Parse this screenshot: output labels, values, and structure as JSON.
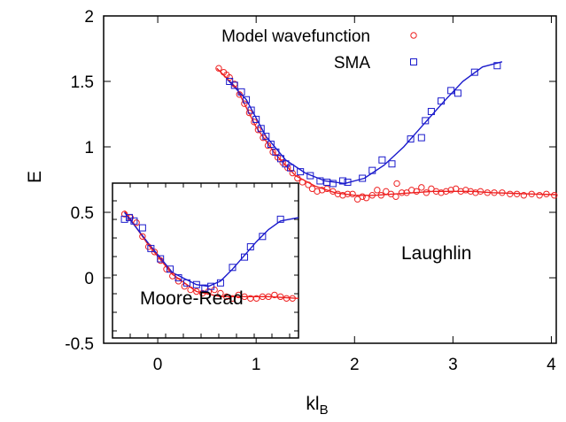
{
  "chart_data": [
    {
      "type": "scatter",
      "title": "",
      "xlabel": "kl",
      "xlabel_subscript": "B",
      "ylabel": "E",
      "xlim": [
        -0.55,
        4.05
      ],
      "ylim": [
        -0.5,
        2.0
      ],
      "x_ticks": [
        "0",
        "1",
        "2",
        "3",
        "4"
      ],
      "y_ticks": [
        "-0.5",
        "0",
        "0.5",
        "1",
        "1.5",
        "2"
      ],
      "x_tick_values": [
        0,
        1,
        2,
        3,
        4
      ],
      "y_tick_values": [
        -0.5,
        0,
        0.5,
        1,
        1.5,
        2
      ],
      "legend_position": "top-right",
      "annotation": "Laughlin",
      "colors": {
        "model": "#ee2222",
        "sma": "#1a1acc"
      },
      "series": [
        {
          "name": "Model wavefunction",
          "marker": "circle",
          "points": [
            [
              0.62,
              1.6
            ],
            [
              0.67,
              1.57
            ],
            [
              0.7,
              1.55
            ],
            [
              0.73,
              1.53
            ],
            [
              0.78,
              1.48
            ],
            [
              0.83,
              1.4
            ],
            [
              0.88,
              1.33
            ],
            [
              0.93,
              1.26
            ],
            [
              0.98,
              1.19
            ],
            [
              1.02,
              1.13
            ],
            [
              1.07,
              1.07
            ],
            [
              1.12,
              1.01
            ],
            [
              1.17,
              0.96
            ],
            [
              1.22,
              0.92
            ],
            [
              1.27,
              0.88
            ],
            [
              1.32,
              0.84
            ],
            [
              1.37,
              0.8
            ],
            [
              1.42,
              0.76
            ],
            [
              1.47,
              0.73
            ],
            [
              1.53,
              0.71
            ],
            [
              1.57,
              0.68
            ],
            [
              1.62,
              0.66
            ],
            [
              1.67,
              0.67
            ],
            [
              1.72,
              0.68
            ],
            [
              1.78,
              0.66
            ],
            [
              1.83,
              0.64
            ],
            [
              1.88,
              0.63
            ],
            [
              1.93,
              0.64
            ],
            [
              1.98,
              0.64
            ],
            [
              2.03,
              0.6
            ],
            [
              2.08,
              0.62
            ],
            [
              2.12,
              0.61
            ],
            [
              2.18,
              0.63
            ],
            [
              2.23,
              0.67
            ],
            [
              2.27,
              0.63
            ],
            [
              2.32,
              0.66
            ],
            [
              2.37,
              0.64
            ],
            [
              2.42,
              0.62
            ],
            [
              2.43,
              0.72
            ],
            [
              2.48,
              0.65
            ],
            [
              2.53,
              0.65
            ],
            [
              2.58,
              0.67
            ],
            [
              2.63,
              0.66
            ],
            [
              2.68,
              0.69
            ],
            [
              2.73,
              0.65
            ],
            [
              2.78,
              0.68
            ],
            [
              2.83,
              0.66
            ],
            [
              2.88,
              0.65
            ],
            [
              2.93,
              0.66
            ],
            [
              2.98,
              0.67
            ],
            [
              3.03,
              0.68
            ],
            [
              3.08,
              0.66
            ],
            [
              3.13,
              0.67
            ],
            [
              3.18,
              0.66
            ],
            [
              3.23,
              0.65
            ],
            [
              3.28,
              0.66
            ],
            [
              3.35,
              0.65
            ],
            [
              3.42,
              0.65
            ],
            [
              3.5,
              0.65
            ],
            [
              3.58,
              0.64
            ],
            [
              3.65,
              0.64
            ],
            [
              3.72,
              0.63
            ],
            [
              3.8,
              0.64
            ],
            [
              3.88,
              0.63
            ],
            [
              3.95,
              0.64
            ],
            [
              4.03,
              0.63
            ]
          ],
          "fit": [
            [
              0.6,
              1.6
            ],
            [
              0.8,
              1.45
            ],
            [
              1.0,
              1.15
            ],
            [
              1.2,
              0.94
            ],
            [
              1.4,
              0.78
            ],
            [
              1.6,
              0.7
            ],
            [
              1.8,
              0.65
            ],
            [
              2.0,
              0.63
            ],
            [
              2.2,
              0.63
            ],
            [
              2.4,
              0.64
            ],
            [
              2.6,
              0.65
            ],
            [
              2.8,
              0.66
            ],
            [
              3.0,
              0.66
            ],
            [
              3.2,
              0.66
            ],
            [
              3.4,
              0.65
            ],
            [
              3.6,
              0.645
            ],
            [
              3.8,
              0.64
            ],
            [
              4.05,
              0.635
            ]
          ]
        },
        {
          "name": "SMA",
          "marker": "square",
          "points": [
            [
              0.73,
              1.5
            ],
            [
              0.78,
              1.47
            ],
            [
              0.85,
              1.42
            ],
            [
              0.9,
              1.36
            ],
            [
              0.95,
              1.28
            ],
            [
              1.0,
              1.21
            ],
            [
              1.05,
              1.14
            ],
            [
              1.1,
              1.08
            ],
            [
              1.15,
              1.02
            ],
            [
              1.2,
              0.96
            ],
            [
              1.25,
              0.91
            ],
            [
              1.3,
              0.87
            ],
            [
              1.35,
              0.84
            ],
            [
              1.45,
              0.81
            ],
            [
              1.55,
              0.78
            ],
            [
              1.65,
              0.74
            ],
            [
              1.72,
              0.73
            ],
            [
              1.78,
              0.72
            ],
            [
              1.88,
              0.74
            ],
            [
              1.93,
              0.73
            ],
            [
              2.08,
              0.76
            ],
            [
              2.18,
              0.82
            ],
            [
              2.28,
              0.9
            ],
            [
              2.38,
              0.87
            ],
            [
              2.57,
              1.06
            ],
            [
              2.68,
              1.07
            ],
            [
              2.72,
              1.2
            ],
            [
              2.78,
              1.27
            ],
            [
              2.88,
              1.35
            ],
            [
              2.98,
              1.43
            ],
            [
              3.05,
              1.41
            ],
            [
              3.22,
              1.57
            ],
            [
              3.45,
              1.62
            ]
          ],
          "fit": [
            [
              0.7,
              1.52
            ],
            [
              0.9,
              1.36
            ],
            [
              1.1,
              1.08
            ],
            [
              1.3,
              0.9
            ],
            [
              1.5,
              0.8
            ],
            [
              1.7,
              0.74
            ],
            [
              1.9,
              0.72
            ],
            [
              2.1,
              0.76
            ],
            [
              2.3,
              0.86
            ],
            [
              2.5,
              1.0
            ],
            [
              2.7,
              1.17
            ],
            [
              2.9,
              1.34
            ],
            [
              3.1,
              1.5
            ],
            [
              3.3,
              1.61
            ],
            [
              3.5,
              1.65
            ]
          ]
        }
      ]
    },
    {
      "type": "scatter",
      "title": "",
      "inset": true,
      "annotation": "Moore-Read",
      "xlim": [
        -0.1,
        1.45
      ],
      "ylim": [
        -0.2,
        0.7
      ],
      "series": [
        {
          "name": "Model wavefunction",
          "marker": "circle",
          "points": [
            [
              0.0,
              0.52
            ],
            [
              0.05,
              0.5
            ],
            [
              0.1,
              0.47
            ],
            [
              0.15,
              0.39
            ],
            [
              0.2,
              0.33
            ],
            [
              0.25,
              0.3
            ],
            [
              0.3,
              0.25
            ],
            [
              0.35,
              0.2
            ],
            [
              0.4,
              0.16
            ],
            [
              0.45,
              0.13
            ],
            [
              0.5,
              0.1
            ],
            [
              0.55,
              0.08
            ],
            [
              0.6,
              0.07
            ],
            [
              0.65,
              0.06
            ],
            [
              0.7,
              0.07
            ],
            [
              0.75,
              0.08
            ],
            [
              0.8,
              0.06
            ],
            [
              0.85,
              0.04
            ],
            [
              0.9,
              0.03
            ],
            [
              0.95,
              0.05
            ],
            [
              1.0,
              0.04
            ],
            [
              1.05,
              0.03
            ],
            [
              1.1,
              0.03
            ],
            [
              1.15,
              0.04
            ],
            [
              1.2,
              0.04
            ],
            [
              1.25,
              0.05
            ],
            [
              1.3,
              0.04
            ],
            [
              1.35,
              0.03
            ],
            [
              1.4,
              0.03
            ]
          ],
          "fit": [
            [
              0.0,
              0.54
            ],
            [
              0.2,
              0.34
            ],
            [
              0.4,
              0.17
            ],
            [
              0.6,
              0.07
            ],
            [
              0.8,
              0.04
            ],
            [
              1.0,
              0.04
            ],
            [
              1.2,
              0.04
            ],
            [
              1.45,
              0.03
            ]
          ]
        },
        {
          "name": "SMA",
          "marker": "square",
          "points": [
            [
              0.0,
              0.49
            ],
            [
              0.04,
              0.5
            ],
            [
              0.08,
              0.48
            ],
            [
              0.15,
              0.44
            ],
            [
              0.22,
              0.32
            ],
            [
              0.3,
              0.26
            ],
            [
              0.38,
              0.2
            ],
            [
              0.45,
              0.15
            ],
            [
              0.52,
              0.12
            ],
            [
              0.6,
              0.11
            ],
            [
              0.67,
              0.09
            ],
            [
              0.72,
              0.1
            ],
            [
              0.8,
              0.12
            ],
            [
              0.9,
              0.21
            ],
            [
              1.0,
              0.27
            ],
            [
              1.05,
              0.33
            ],
            [
              1.15,
              0.39
            ],
            [
              1.3,
              0.49
            ]
          ],
          "fit": [
            [
              0.0,
              0.53
            ],
            [
              0.2,
              0.35
            ],
            [
              0.4,
              0.18
            ],
            [
              0.6,
              0.11
            ],
            [
              0.7,
              0.1
            ],
            [
              0.8,
              0.13
            ],
            [
              0.9,
              0.2
            ],
            [
              1.0,
              0.28
            ],
            [
              1.1,
              0.36
            ],
            [
              1.2,
              0.43
            ],
            [
              1.3,
              0.48
            ],
            [
              1.45,
              0.5
            ]
          ]
        }
      ]
    }
  ]
}
